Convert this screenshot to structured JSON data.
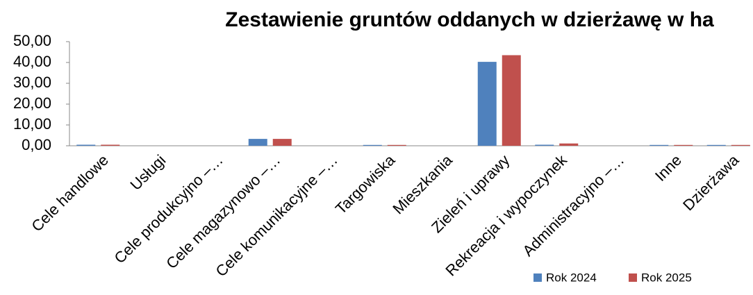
{
  "chart_data": {
    "type": "bar",
    "title": "Zestawienie gruntów oddanych w dzierżawę w ha",
    "categories": [
      "Cele handlowe",
      "Usługi",
      "Cele produkcyjno –…",
      "Cele magazynowo –…",
      "Cele komunikacyjne –…",
      "Targowiska",
      "Mieszkania",
      "Zieleń i uprawy",
      "Rekreacja i wypoczynek",
      "Administracyjno –…",
      "Inne",
      "Dzierżawa"
    ],
    "series": [
      {
        "name": "Rok 2024",
        "color": "#4f81bd",
        "values": [
          0.5,
          0,
          0,
          3.3,
          0,
          0.4,
          0,
          40.3,
          0.5,
          0,
          0.4,
          0.4
        ]
      },
      {
        "name": "Rok 2025",
        "color": "#c0504d",
        "values": [
          0.5,
          0,
          0,
          3.3,
          0,
          0.4,
          0,
          43.5,
          1.1,
          0,
          0.4,
          0.4
        ]
      }
    ],
    "ylim": [
      0,
      50
    ],
    "yticks": [
      {
        "value": 0,
        "label": "0,00"
      },
      {
        "value": 10,
        "label": "10,00"
      },
      {
        "value": 20,
        "label": "20,00"
      },
      {
        "value": 30,
        "label": "30,00"
      },
      {
        "value": 40,
        "label": "40,00"
      },
      {
        "value": 50,
        "label": "50,00"
      }
    ],
    "legend": "bottom-right"
  }
}
